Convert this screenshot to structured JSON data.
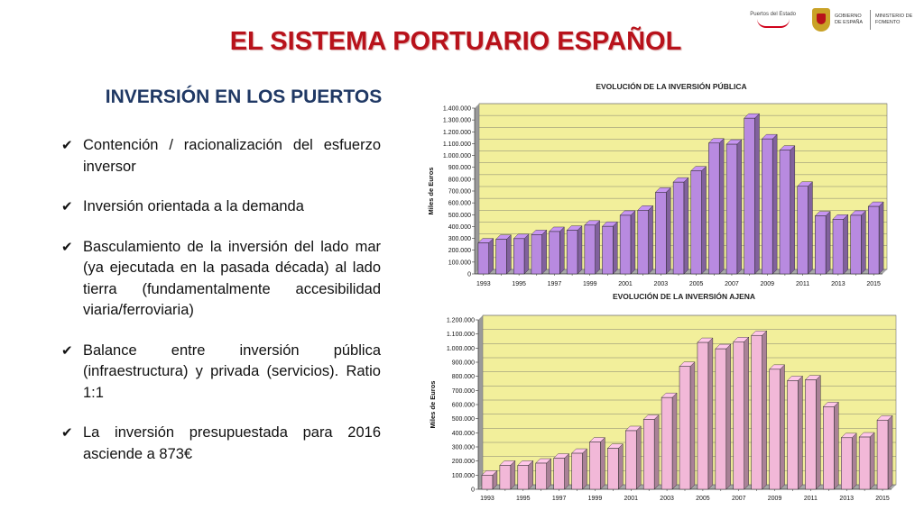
{
  "header": {
    "puertos_logo_text": "Puertos del Estado",
    "gobierno_text": "GOBIERNO DE ESPAÑA",
    "ministerio_text": "MINISTERIO DE FOMENTO"
  },
  "title": "EL SISTEMA PORTUARIO ESPAÑOL",
  "section_title": "INVERSIÓN EN LOS PUERTOS",
  "bullets": [
    "Contención / racionalización del esfuerzo inversor",
    "Inversión orientada a la demanda",
    "Basculamiento de la inversión del lado mar (ya ejecutada en la pasada década) al lado tierra (fundamentalmente accesibilidad viaria/ferroviaria)",
    "Balance entre inversión pública (infraestructura) y privada (servicios). Ratio 1:1",
    "La inversión presupuestada para 2016 asciende a 873€"
  ],
  "colors": {
    "title": "#b8121b",
    "section_title": "#1f3864",
    "plot_bg": "#f2ef9b",
    "public_bar": "#b88ae0",
    "private_bar": "#f2b8d8"
  },
  "chart_data": [
    {
      "type": "bar",
      "title": "EVOLUCIÓN DE LA INVERSIÓN PÚBLICA",
      "ylabel": "Miles de Euros",
      "xlabel": "",
      "categories": [
        "1993",
        "1994",
        "1995",
        "1996",
        "1997",
        "1998",
        "1999",
        "2000",
        "2001",
        "2002",
        "2003",
        "2004",
        "2005",
        "2006",
        "2007",
        "2008",
        "2009",
        "2010",
        "2011",
        "2012",
        "2013",
        "2014",
        "2015"
      ],
      "x_tick_labels": [
        "1993",
        "1995",
        "1997",
        "1999",
        "2001",
        "2003",
        "2005",
        "2007",
        "2009",
        "2011",
        "2013",
        "2015"
      ],
      "values": [
        262000,
        292000,
        298000,
        332000,
        358000,
        368000,
        412000,
        402000,
        495000,
        538000,
        690000,
        775000,
        870000,
        1105000,
        1095000,
        1315000,
        1140000,
        1045000,
        740000,
        490000,
        462000,
        495000,
        570000
      ],
      "ylim": [
        0,
        1400000
      ],
      "y_tick_labels": [
        "0",
        "100.000",
        "200.000",
        "300.000",
        "400.000",
        "500.000",
        "600.000",
        "700.000",
        "800.000",
        "900.000",
        "1.000.000",
        "1.100.000",
        "1.200.000",
        "1.300.000",
        "1.400.000"
      ],
      "grid": true,
      "legend": "none"
    },
    {
      "type": "bar",
      "title": "EVOLUCIÓN DE LA INVERSIÓN AJENA",
      "ylabel": "Miles de Euros",
      "xlabel": "",
      "categories": [
        "1993",
        "1994",
        "1995",
        "1996",
        "1997",
        "1998",
        "1999",
        "2000",
        "2001",
        "2002",
        "2003",
        "2004",
        "2005",
        "2006",
        "2007",
        "2008",
        "2009",
        "2010",
        "2011",
        "2012",
        "2013",
        "2014",
        "2015"
      ],
      "x_tick_labels": [
        "1993",
        "1995",
        "1997",
        "1999",
        "2001",
        "2003",
        "2005",
        "2007",
        "2009",
        "2011",
        "2013",
        "2015"
      ],
      "values": [
        100000,
        170000,
        170000,
        185000,
        220000,
        255000,
        335000,
        290000,
        415000,
        495000,
        650000,
        870000,
        1040000,
        995000,
        1045000,
        1090000,
        850000,
        770000,
        775000,
        585000,
        365000,
        370000,
        490000
      ],
      "ylim": [
        0,
        1200000
      ],
      "y_tick_labels": [
        "0",
        "100.000",
        "200.000",
        "300.000",
        "400.000",
        "500.000",
        "600.000",
        "700.000",
        "800.000",
        "900.000",
        "1.000.000",
        "1.100.000",
        "1.200.000"
      ],
      "grid": true,
      "legend": "none"
    }
  ]
}
